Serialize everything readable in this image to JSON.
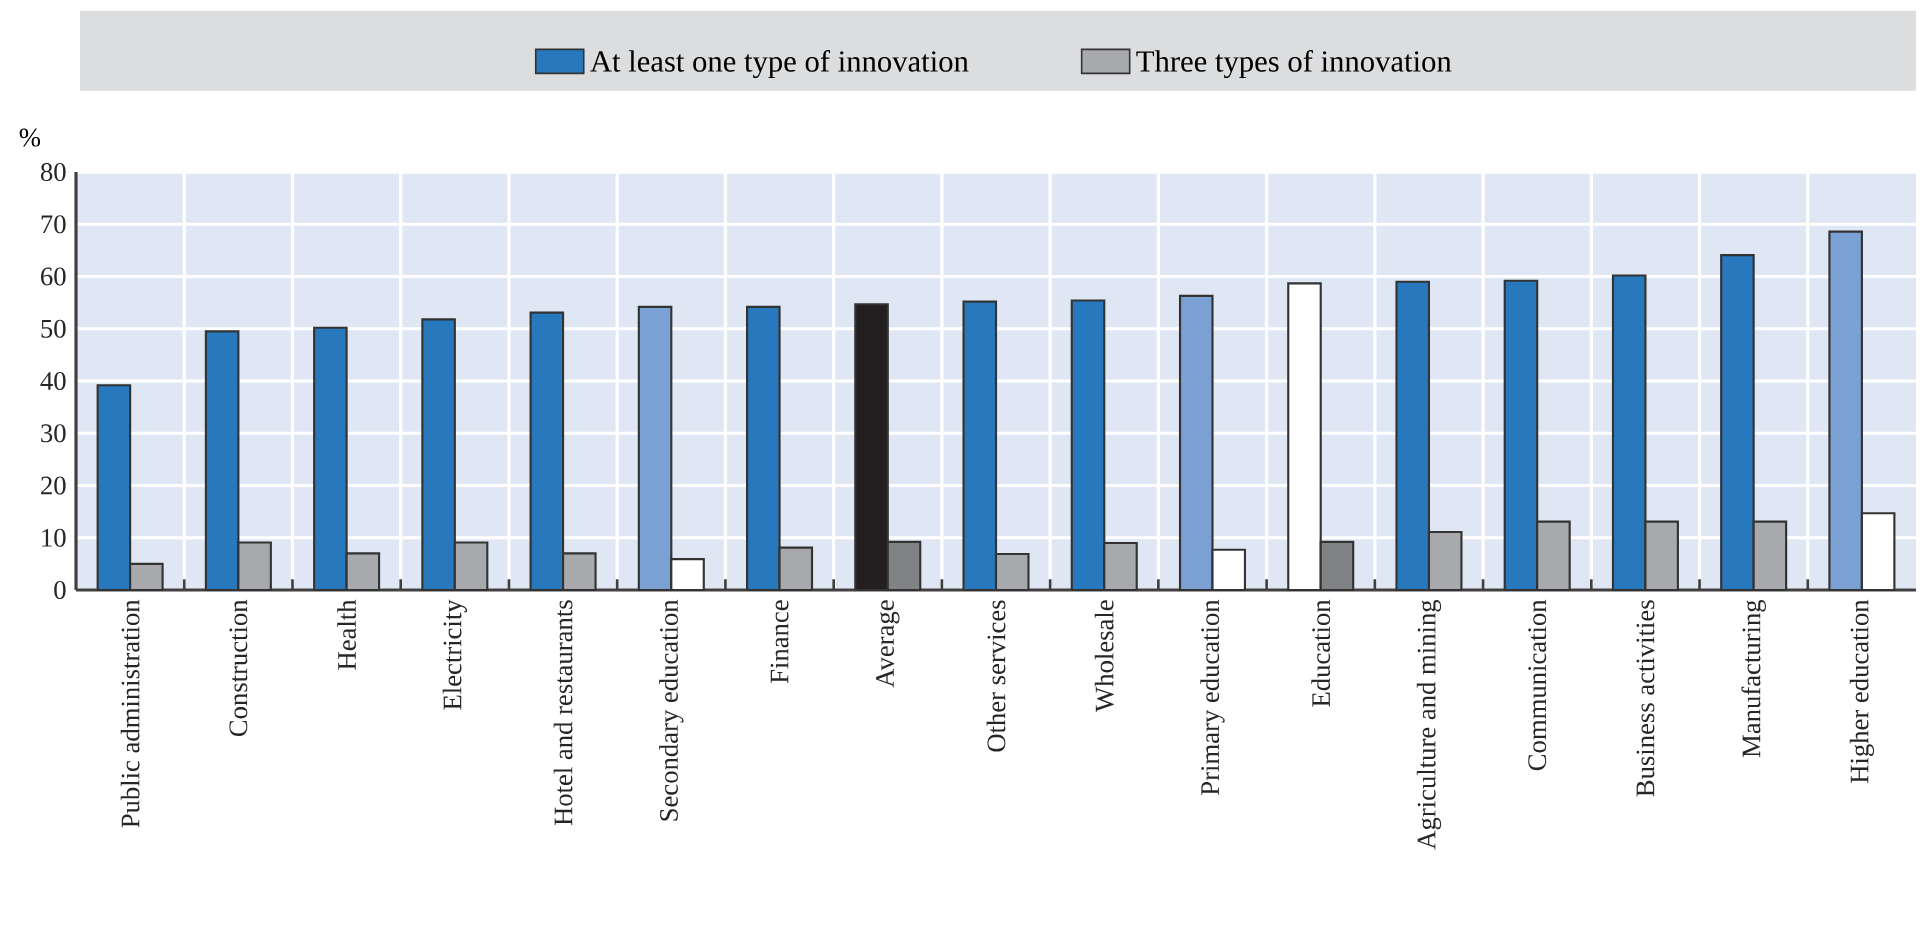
{
  "chart_data": {
    "type": "bar",
    "ylabel": "%",
    "legend": "top",
    "grid": true,
    "categories": [
      "Public administration",
      "Construction",
      "Health",
      "Electricity",
      "Hotel and restaurants",
      "Secondary education",
      "Finance",
      "Average",
      "Other services",
      "Wholesale",
      "Primary education",
      "Education",
      "Agriculture and mining",
      "Communication",
      "Business activities",
      "Manufacturing",
      "Higher education"
    ],
    "ylim": [
      0,
      80
    ],
    "yticks": [
      0,
      10,
      20,
      30,
      40,
      50,
      60,
      70,
      80
    ],
    "series": [
      {
        "name": "At least one type of innovation",
        "color": "#2878bd",
        "colors": [
          "#2878bd",
          "#2878bd",
          "#2878bd",
          "#2878bd",
          "#2878bd",
          "#7ba0d4",
          "#2878bd",
          "#231f20",
          "#2878bd",
          "#2878bd",
          "#7ba0d4",
          "#ffffff",
          "#2878bd",
          "#2878bd",
          "#2878bd",
          "#2878bd",
          "#7ba0d4"
        ],
        "values": [
          39.2,
          49.5,
          50.2,
          51.8,
          53.1,
          54.2,
          54.2,
          54.7,
          55.2,
          55.4,
          56.3,
          58.7,
          59.0,
          59.2,
          60.2,
          64.1,
          68.6
        ]
      },
      {
        "name": "Three types of innovation",
        "color": "#a7a9ac",
        "colors": [
          "#a7a9ac",
          "#a7a9ac",
          "#a7a9ac",
          "#a7a9ac",
          "#a7a9ac",
          "#ffffff",
          "#a7a9ac",
          "#808285",
          "#a7a9ac",
          "#a7a9ac",
          "#ffffff",
          "#808285",
          "#a7a9ac",
          "#a7a9ac",
          "#a7a9ac",
          "#a7a9ac",
          "#ffffff"
        ],
        "values": [
          5.0,
          9.1,
          7.0,
          9.1,
          7.0,
          5.9,
          8.1,
          9.2,
          6.9,
          9.0,
          7.7,
          9.2,
          11.1,
          13.1,
          13.1,
          13.1,
          14.7
        ]
      }
    ]
  }
}
